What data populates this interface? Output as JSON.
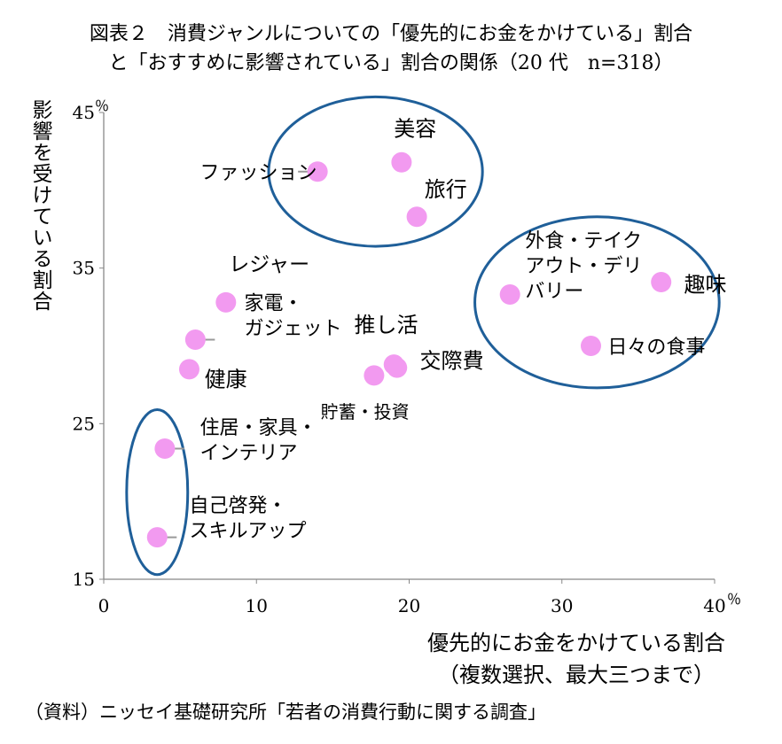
{
  "title": {
    "line1": "図表２　消費ジャンルについての「優先的にお金をかけている」割合",
    "line2": "と「おすすめに影響されている」割合の関係（20 代　n=318）"
  },
  "source": "（資料）ニッセイ基礎研究所「若者の消費行動に関する調査」",
  "chart_data": {
    "type": "scatter",
    "xlabel": "優先的にお金をかけている割合（複数選択、最大三つまで）",
    "xlabel_lines": [
      "優先的にお金をかけている割合",
      "（複数選択、最大三つまで）"
    ],
    "ylabel": "影響を受けている割合",
    "xlim": [
      0,
      40
    ],
    "ylim": [
      15,
      45
    ],
    "xticks": [
      "0",
      "10",
      "20",
      "30",
      "40"
    ],
    "yticks": [
      "15",
      "25",
      "35",
      "45"
    ],
    "x_unit": "％",
    "y_unit": "％",
    "grid": false,
    "point_color": "#f29af0",
    "circle_color": "#1f5f99",
    "points": [
      {
        "name": "美容",
        "x": 19.5,
        "y": 41.8
      },
      {
        "name": "ファッション",
        "x": 14.0,
        "y": 41.2
      },
      {
        "name": "旅行",
        "x": 20.5,
        "y": 38.3
      },
      {
        "name": "趣味",
        "x": 36.5,
        "y": 34.1
      },
      {
        "name": "外食・テイクアウト・デリバリー",
        "x": 26.6,
        "y": 33.3
      },
      {
        "name": "レジャー",
        "x": 8.0,
        "y": 32.8
      },
      {
        "name": "家電・ガジェット",
        "x": 6.0,
        "y": 30.4
      },
      {
        "name": "日々の食事",
        "x": 31.9,
        "y": 30.0
      },
      {
        "name": "推し活",
        "x": 19.0,
        "y": 28.8
      },
      {
        "name": "交際費",
        "x": 19.2,
        "y": 28.6
      },
      {
        "name": "健康",
        "x": 5.6,
        "y": 28.5
      },
      {
        "name": "貯蓄・投資",
        "x": 17.7,
        "y": 28.1
      },
      {
        "name": "住居・家具・インテリア",
        "x": 4.0,
        "y": 23.4
      },
      {
        "name": "自己啓発・スキルアップ",
        "x": 3.5,
        "y": 17.7
      }
    ],
    "labels": [
      {
        "name": "美容",
        "lines": [
          "美容"
        ],
        "x": 19.0,
        "y": 44.0,
        "size": 24,
        "leader": false
      },
      {
        "name": "ファッション",
        "lines": [
          "ファッション"
        ],
        "x": 6.3,
        "y": 41.2,
        "size": 22,
        "leader": true
      },
      {
        "name": "旅行",
        "lines": [
          "旅行"
        ],
        "x": 21.0,
        "y": 40.1,
        "size": 24,
        "leader": false
      },
      {
        "name": "趣味",
        "lines": [
          "趣味"
        ],
        "x": 38.0,
        "y": 34.0,
        "size": 24,
        "leader": false
      },
      {
        "name": "外食・テイクアウト・デリバリー",
        "lines": [
          "外食・テイク",
          "アウト・デリ",
          "バリー"
        ],
        "x": 27.6,
        "y": 35.2,
        "size": 22,
        "leader": false
      },
      {
        "name": "レジャー",
        "lines": [
          "レジャー"
        ],
        "x": 8.2,
        "y": 35.3,
        "size": 23,
        "leader": false
      },
      {
        "name": "家電・ガジェット",
        "lines": [
          "家電・",
          "ガジェット"
        ],
        "x": 9.2,
        "y": 32.0,
        "size": 22,
        "leader": true
      },
      {
        "name": "日々の食事",
        "lines": [
          "日々の食事"
        ],
        "x": 33.0,
        "y": 30.0,
        "size": 22,
        "leader": false
      },
      {
        "name": "推し活",
        "lines": [
          "推し活"
        ],
        "x": 16.4,
        "y": 31.4,
        "size": 24,
        "leader": false
      },
      {
        "name": "交際費",
        "lines": [
          "交際費"
        ],
        "x": 20.7,
        "y": 29.1,
        "size": 24,
        "leader": false
      },
      {
        "name": "健康",
        "lines": [
          "健康"
        ],
        "x": 6.6,
        "y": 27.9,
        "size": 24,
        "leader": false
      },
      {
        "name": "貯蓄・投資",
        "lines": [
          "貯蓄・投資"
        ],
        "x": 14.2,
        "y": 25.8,
        "size": 20,
        "leader": false
      },
      {
        "name": "住居・家具・インテリア",
        "lines": [
          "住居・家具・",
          "インテリア"
        ],
        "x": 6.3,
        "y": 24.0,
        "size": 22,
        "leader": true
      },
      {
        "name": "自己啓発・スキルアップ",
        "lines": [
          "自己啓発・",
          "スキルアップ"
        ],
        "x": 5.6,
        "y": 19.0,
        "size": 22,
        "leader": true
      }
    ],
    "groups": [
      {
        "name": "美容・ファッション・旅行",
        "cx": 17.8,
        "cy": 41.2,
        "rx": 7.0,
        "ry": 4.8
      },
      {
        "name": "外食・趣味・日々の食事",
        "cx": 32.3,
        "cy": 32.8,
        "rx": 8.0,
        "ry": 5.5
      },
      {
        "name": "住居・自己啓発",
        "cx": 3.5,
        "cy": 20.6,
        "rx": 2.0,
        "ry": 5.3
      }
    ]
  }
}
